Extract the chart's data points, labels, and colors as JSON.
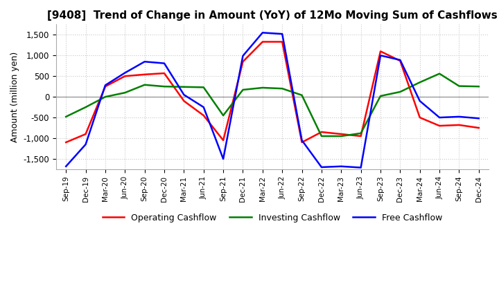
{
  "title": "[9408]  Trend of Change in Amount (YoY) of 12Mo Moving Sum of Cashflows",
  "ylabel": "Amount (million yen)",
  "ylim": [
    -1750,
    1750
  ],
  "yticks": [
    -1500,
    -1000,
    -500,
    0,
    500,
    1000,
    1500
  ],
  "x_labels": [
    "Sep-19",
    "Dec-19",
    "Mar-20",
    "Jun-20",
    "Sep-20",
    "Dec-20",
    "Mar-21",
    "Jun-21",
    "Sep-21",
    "Dec-21",
    "Mar-22",
    "Jun-22",
    "Sep-22",
    "Dec-22",
    "Mar-23",
    "Jun-23",
    "Sep-23",
    "Dec-23",
    "Mar-24",
    "Jun-24",
    "Sep-24",
    "Dec-24"
  ],
  "operating": [
    -1100,
    -900,
    250,
    500,
    540,
    570,
    -100,
    -450,
    -1050,
    850,
    1330,
    1330,
    -1100,
    -850,
    -900,
    -950,
    1100,
    870,
    -500,
    -700,
    -680,
    -750
  ],
  "investing": [
    -480,
    -250,
    0,
    100,
    290,
    250,
    240,
    230,
    -450,
    170,
    220,
    200,
    40,
    -950,
    -950,
    -880,
    20,
    120,
    350,
    560,
    260,
    250
  ],
  "free": [
    -1680,
    -1150,
    280,
    580,
    850,
    810,
    50,
    -250,
    -1500,
    990,
    1550,
    1520,
    -1050,
    -1700,
    -1680,
    -1710,
    1000,
    890,
    -100,
    -500,
    -480,
    -520
  ],
  "op_color": "#ff0000",
  "inv_color": "#008000",
  "free_color": "#0000ff",
  "background_color": "#ffffff",
  "grid_color": "#c8c8c8",
  "grid_style": "dotted",
  "title_fontsize": 11,
  "axis_fontsize": 9,
  "legend_fontsize": 9,
  "line_width": 1.8
}
